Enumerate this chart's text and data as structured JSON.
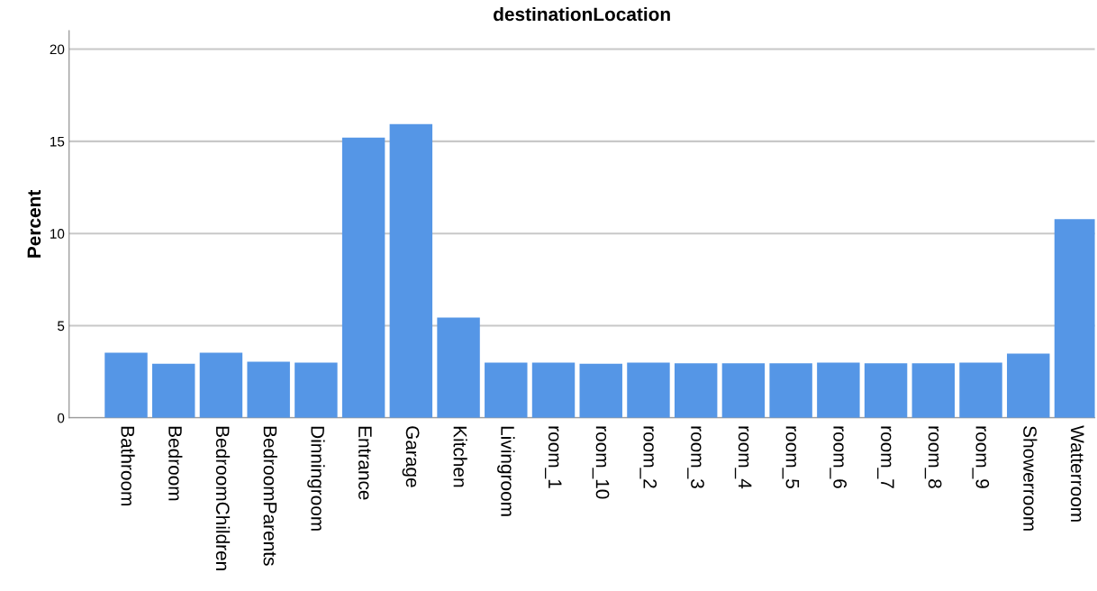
{
  "chart_data": {
    "type": "bar",
    "title": "destinationLocation",
    "ylabel": "Percent",
    "categories": [
      "Bathroom",
      "Bedroom",
      "BedroomChildren",
      "BedroomParents",
      "Dinningroom",
      "Entrance",
      "Garage",
      "Kitchen",
      "Livingroom",
      "room_1",
      "room_10",
      "room_2",
      "room_3",
      "room_4",
      "room_5",
      "room_6",
      "room_7",
      "room_8",
      "room_9",
      "Showerroom",
      "Watterroom"
    ],
    "values": [
      3.53,
      2.94,
      3.53,
      3.04,
      2.99,
      15.2,
      15.93,
      5.44,
      2.99,
      2.99,
      2.94,
      2.99,
      2.96,
      2.96,
      2.96,
      2.99,
      2.96,
      2.96,
      2.99,
      3.48,
      10.78
    ],
    "color": "#5596e6",
    "ylim": [
      0,
      21
    ],
    "yticks": [
      0,
      5,
      10,
      15,
      20
    ],
    "grid": "y"
  }
}
